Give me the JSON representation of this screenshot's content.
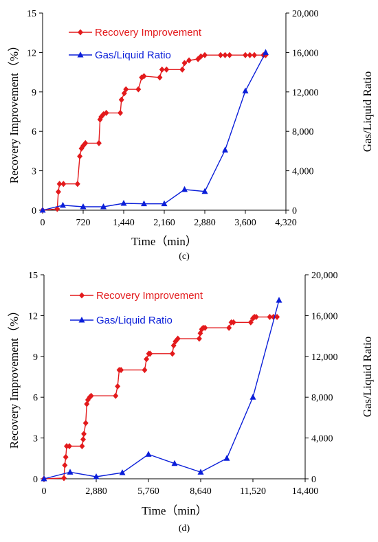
{
  "colors": {
    "recovery": "#e31a1c",
    "gas": "#0b1fd9",
    "axis": "#000000"
  },
  "chart_data": [
    {
      "panel": "(c)",
      "type": "line",
      "xlabel": "Time（min）",
      "ylabel": "Recovery Improvement（%）",
      "y2label": "Gas/Liquid  Ratio",
      "xlim": [
        0,
        4320
      ],
      "ylim": [
        0,
        15
      ],
      "y2lim": [
        0,
        20000
      ],
      "xticks": [
        "0",
        "720",
        "1,440",
        "2,160",
        "2,880",
        "3,600",
        "4,320"
      ],
      "yticks": [
        "0",
        "3",
        "6",
        "9",
        "12",
        "15"
      ],
      "y2ticks": [
        "0",
        "4,000",
        "8,000",
        "12,000",
        "16,000",
        "20,000"
      ],
      "legend": {
        "position": "top-left",
        "entries": [
          "Recovery Improvement",
          "Gas/Liquid Ratio"
        ]
      },
      "series": [
        {
          "name": "Recovery Improvement",
          "axis": "left",
          "marker": "diamond",
          "x": [
            0,
            260,
            280,
            300,
            370,
            620,
            660,
            690,
            720,
            760,
            1000,
            1020,
            1040,
            1080,
            1130,
            1380,
            1400,
            1450,
            1480,
            1700,
            1760,
            1800,
            2080,
            2120,
            2200,
            2480,
            2520,
            2600,
            2760,
            2810,
            2880,
            3160,
            3240,
            3320,
            3600,
            3680,
            3760,
            3920,
            3960
          ],
          "y": [
            0,
            0.1,
            1.4,
            2,
            2,
            2,
            4.1,
            4.7,
            4.9,
            5.1,
            5.1,
            6.9,
            7.1,
            7.3,
            7.4,
            7.4,
            8.4,
            8.9,
            9.2,
            9.2,
            10.1,
            10.2,
            10.1,
            10.7,
            10.7,
            10.7,
            11.2,
            11.4,
            11.5,
            11.7,
            11.8,
            11.8,
            11.8,
            11.8,
            11.8,
            11.8,
            11.8,
            11.8,
            11.8
          ]
        },
        {
          "name": "Gas/Liquid Ratio",
          "axis": "right",
          "marker": "triangle",
          "x": [
            0,
            360,
            720,
            1080,
            1440,
            1800,
            2160,
            2520,
            2880,
            3240,
            3600,
            3960
          ],
          "y": [
            0,
            500,
            350,
            350,
            700,
            650,
            650,
            2100,
            1900,
            6100,
            12100,
            16000
          ]
        }
      ]
    },
    {
      "panel": "(d)",
      "type": "line",
      "xlabel": "Time（min）",
      "ylabel": "Recovery Improvement（%）",
      "y2label": "Gas/Liquid  Ratio",
      "xlim": [
        0,
        14400
      ],
      "ylim": [
        0,
        15
      ],
      "y2lim": [
        0,
        20000
      ],
      "xticks": [
        "0",
        "2,880",
        "5,760",
        "8,640",
        "11,520",
        "14,400"
      ],
      "yticks": [
        "0",
        "3",
        "6",
        "9",
        "12",
        "15"
      ],
      "y2ticks": [
        "0",
        "4,000",
        "8,000",
        "12,000",
        "16,000",
        "20,000"
      ],
      "legend": {
        "position": "top-left",
        "entries": [
          "Recovery Improvement",
          "Gas/Liquid Ratio"
        ]
      },
      "series": [
        {
          "name": "Recovery Improvement",
          "axis": "left",
          "marker": "diamond",
          "x": [
            0,
            1100,
            1150,
            1200,
            1250,
            1400,
            2100,
            2160,
            2200,
            2300,
            2360,
            2420,
            2520,
            2600,
            3950,
            4060,
            4150,
            4250,
            5550,
            5650,
            5780,
            5850,
            7080,
            7150,
            7250,
            7380,
            8560,
            8620,
            8700,
            8780,
            8880,
            10200,
            10330,
            10450,
            11400,
            11520,
            11600,
            11700,
            12450,
            12650,
            12850
          ],
          "y": [
            0,
            0.05,
            1,
            1.6,
            2.4,
            2.4,
            2.4,
            2.9,
            3.3,
            4.1,
            5.5,
            5.8,
            6,
            6.1,
            6.1,
            6.8,
            8,
            8,
            8,
            8.8,
            9.2,
            9.2,
            9.2,
            9.8,
            10.1,
            10.3,
            10.3,
            10.7,
            11,
            11.1,
            11.1,
            11.1,
            11.5,
            11.5,
            11.5,
            11.8,
            11.9,
            11.9,
            11.9,
            11.9,
            11.9
          ]
        },
        {
          "name": "Gas/Liquid Ratio",
          "axis": "right",
          "marker": "triangle",
          "x": [
            0,
            1440,
            2880,
            4320,
            5760,
            7200,
            8640,
            10080,
            11520,
            12960
          ],
          "y": [
            0,
            650,
            200,
            600,
            2400,
            1500,
            650,
            2000,
            8000,
            17500
          ]
        }
      ]
    }
  ]
}
